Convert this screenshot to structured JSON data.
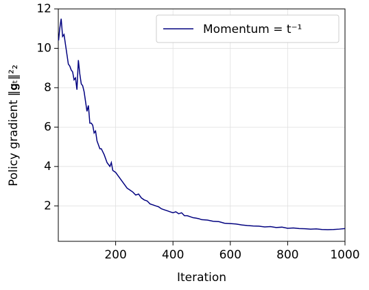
{
  "chart_data": {
    "type": "line",
    "xlabel": "Iteration",
    "ylabel": "Policy gradient ‖𝐠ₜ‖²₂",
    "x": [
      1,
      5,
      10,
      15,
      20,
      25,
      30,
      35,
      40,
      45,
      50,
      55,
      60,
      65,
      70,
      75,
      80,
      85,
      90,
      95,
      100,
      105,
      110,
      115,
      120,
      125,
      130,
      135,
      140,
      145,
      150,
      160,
      170,
      180,
      185,
      190,
      200,
      210,
      220,
      230,
      240,
      250,
      260,
      270,
      280,
      290,
      300,
      310,
      320,
      330,
      340,
      350,
      360,
      370,
      380,
      390,
      400,
      410,
      420,
      430,
      440,
      450,
      460,
      470,
      480,
      490,
      500,
      520,
      540,
      560,
      580,
      600,
      620,
      640,
      660,
      680,
      700,
      720,
      740,
      760,
      780,
      800,
      820,
      840,
      860,
      880,
      900,
      920,
      940,
      960,
      980,
      1000
    ],
    "series": [
      {
        "name": "Momentum = t⁻¹",
        "color": "#00007f",
        "values": [
          10.4,
          11.0,
          11.5,
          10.6,
          10.7,
          10.2,
          9.7,
          9.2,
          9.1,
          8.9,
          8.8,
          8.4,
          8.5,
          7.9,
          9.4,
          8.7,
          8.2,
          8.1,
          7.8,
          7.3,
          6.8,
          7.1,
          6.2,
          6.2,
          6.1,
          5.7,
          5.8,
          5.3,
          5.1,
          4.9,
          4.9,
          4.6,
          4.2,
          4.0,
          4.2,
          3.8,
          3.7,
          3.5,
          3.3,
          3.1,
          2.9,
          2.8,
          2.7,
          2.55,
          2.6,
          2.4,
          2.3,
          2.25,
          2.1,
          2.05,
          2.0,
          1.95,
          1.85,
          1.8,
          1.75,
          1.7,
          1.65,
          1.7,
          1.6,
          1.65,
          1.5,
          1.5,
          1.45,
          1.4,
          1.38,
          1.35,
          1.3,
          1.28,
          1.22,
          1.2,
          1.12,
          1.1,
          1.08,
          1.03,
          1.0,
          0.98,
          0.97,
          0.93,
          0.95,
          0.9,
          0.92,
          0.86,
          0.88,
          0.85,
          0.84,
          0.82,
          0.83,
          0.8,
          0.79,
          0.8,
          0.82,
          0.85
        ]
      }
    ],
    "xlim": [
      0,
      1000
    ],
    "xticks": [
      200,
      400,
      600,
      800,
      1000
    ],
    "ylim": [
      0.2,
      12
    ],
    "yticks": [
      2,
      4,
      6,
      8,
      10,
      12
    ],
    "grid": true,
    "legend": "upper right"
  }
}
